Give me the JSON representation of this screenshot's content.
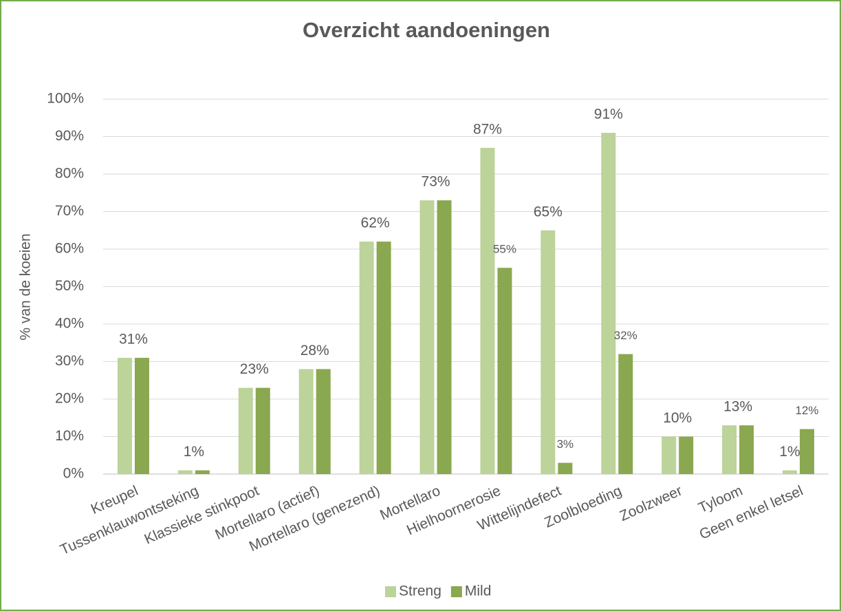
{
  "chart_data": {
    "type": "bar",
    "title": "Overzicht aandoeningen",
    "y_label": "% van de koeien",
    "categories": [
      "Kreupel",
      "Tussenklauwontsteking",
      "Klassieke stinkpoot",
      "Mortellaro (actief)",
      "Mortellaro (genezend)",
      "Mortellaro",
      "Hielhoornerosie",
      "Wittelijndefect",
      "Zoolbloeding",
      "Zoolzweer",
      "Tyloom",
      "Geen enkel letsel"
    ],
    "series": [
      {
        "name": "Streng",
        "color": "#bcd39a",
        "values": [
          31,
          1,
          23,
          28,
          62,
          73,
          87,
          65,
          91,
          10,
          13,
          1
        ],
        "value_labels": [
          "31%",
          "1%",
          "23%",
          "28%",
          "62%",
          "73%",
          "87%",
          "65%",
          "91%",
          "10%",
          "13%",
          "1%"
        ]
      },
      {
        "name": "Mild",
        "color": "#8aa84f",
        "values": [
          31,
          1,
          23,
          28,
          62,
          73,
          55,
          3,
          32,
          10,
          13,
          12
        ],
        "value_labels": [
          null,
          null,
          null,
          null,
          null,
          null,
          "55%",
          "3%",
          "32%",
          null,
          null,
          "12%"
        ]
      }
    ],
    "ylim": [
      0,
      100
    ],
    "yticks": [
      {
        "value": 0,
        "label": "0%"
      },
      {
        "value": 10,
        "label": "10%"
      },
      {
        "value": 20,
        "label": "20%"
      },
      {
        "value": 30,
        "label": "30%"
      },
      {
        "value": 40,
        "label": "40%"
      },
      {
        "value": 50,
        "label": "50%"
      },
      {
        "value": 60,
        "label": "60%"
      },
      {
        "value": 70,
        "label": "70%"
      },
      {
        "value": 80,
        "label": "80%"
      },
      {
        "value": 90,
        "label": "90%"
      },
      {
        "value": 100,
        "label": "100%"
      }
    ],
    "grid": true,
    "legend": "bottom"
  }
}
